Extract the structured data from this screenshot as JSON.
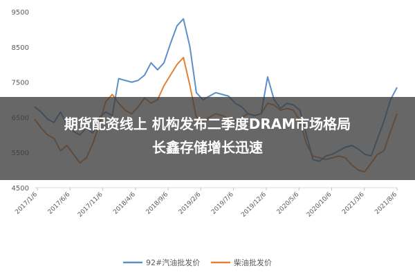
{
  "headline": {
    "line1": "期货配资线上 机构发布二季度DRAM市场格局",
    "line2": "长鑫存储增长迅速"
  },
  "chart_data": {
    "type": "line",
    "title": "",
    "xlabel": "",
    "ylabel": "",
    "ylim": [
      4500,
      9500
    ],
    "yticks": [
      4500,
      5500,
      6500,
      7500,
      8500,
      9500
    ],
    "xticks": [
      "2017/1/6",
      "2017/6/6",
      "2017/11/6",
      "2018/4/6",
      "2018/9/6",
      "2019/2/6",
      "2019/7/6",
      "2019/12/6",
      "2020/5/6",
      "2020/10/6",
      "2021/3/6",
      "2021/8/6"
    ],
    "xrange": [
      0,
      56
    ],
    "grid": false,
    "legend_position": "bottom-center",
    "series": [
      {
        "name": "92#汽油批发价",
        "color": "#5B8FC7",
        "x": [
          0,
          1,
          2,
          3,
          4,
          5,
          6,
          7,
          8,
          9,
          10,
          11,
          12,
          13,
          14,
          15,
          16,
          17,
          18,
          19,
          20,
          21,
          22,
          23,
          24,
          25,
          26,
          27,
          28,
          29,
          30,
          31,
          32,
          33,
          34,
          35,
          36,
          37,
          38,
          39,
          40,
          41,
          42,
          43,
          44,
          45,
          46,
          47,
          48,
          49,
          50,
          51,
          52,
          53,
          54,
          55,
          56
        ],
        "values": [
          6800,
          6650,
          6450,
          6350,
          6650,
          6300,
          6100,
          6000,
          6200,
          6050,
          6500,
          6650,
          6550,
          7600,
          7550,
          7500,
          7550,
          7700,
          8050,
          7850,
          8050,
          8600,
          9100,
          9300,
          8500,
          7200,
          7000,
          7100,
          7200,
          7150,
          7100,
          6900,
          6800,
          6600,
          6550,
          6600,
          7650,
          7000,
          6750,
          6900,
          6850,
          6700,
          6000,
          5300,
          5250,
          5400,
          5450,
          5550,
          5650,
          5700,
          5600,
          5450,
          5400,
          5900,
          6400,
          7000,
          7350
        ]
      },
      {
        "name": "柴油批发价",
        "color": "#E0813A",
        "x": [
          0,
          1,
          2,
          3,
          4,
          5,
          6,
          7,
          8,
          9,
          10,
          11,
          12,
          13,
          14,
          15,
          16,
          17,
          18,
          19,
          20,
          21,
          22,
          23,
          24,
          25,
          26,
          27,
          28,
          29,
          30,
          31,
          32,
          33,
          34,
          35,
          36,
          37,
          38,
          39,
          40,
          41,
          42,
          43,
          44,
          45,
          46,
          47,
          48,
          49,
          50,
          51,
          52,
          53,
          54,
          55,
          56
        ],
        "values": [
          6450,
          6200,
          6000,
          5900,
          5550,
          5700,
          5450,
          5200,
          5350,
          5750,
          6300,
          6950,
          7150,
          6900,
          6700,
          6600,
          6800,
          7050,
          6900,
          7000,
          7400,
          7700,
          8000,
          8200,
          7400,
          6500,
          6400,
          6500,
          6600,
          6550,
          6450,
          6400,
          6500,
          6600,
          6550,
          6600,
          6900,
          6850,
          6700,
          6750,
          6700,
          6400,
          5750,
          5400,
          5350,
          5300,
          5350,
          5400,
          5350,
          5150,
          5000,
          4950,
          5200,
          5450,
          5550,
          6100,
          6600
        ]
      }
    ]
  }
}
